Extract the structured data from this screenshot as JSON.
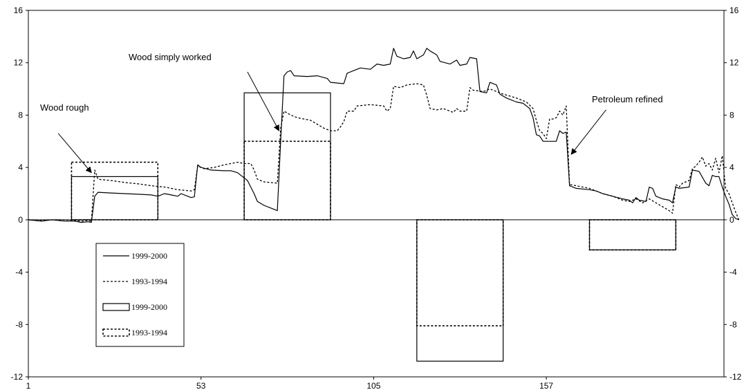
{
  "chart_data": {
    "type": "line",
    "title": "",
    "xlabel": "",
    "ylabel": "",
    "xlim": [
      1,
      209
    ],
    "ylim": [
      -12,
      16
    ],
    "y_ticks": [
      16,
      12,
      8,
      4,
      0,
      -4,
      -8,
      -12
    ],
    "x_ticks": [
      1,
      53,
      105,
      157
    ],
    "grid": false,
    "series": [
      {
        "name": "1999-2000",
        "style": "solid",
        "color": "#000000",
        "points": [
          [
            1,
            0
          ],
          [
            5,
            -0.1
          ],
          [
            8,
            0
          ],
          [
            10,
            -0.05
          ],
          [
            12,
            -0.1
          ],
          [
            15,
            -0.1
          ],
          [
            17,
            -0.2
          ],
          [
            19,
            -0.15
          ],
          [
            20,
            -0.2
          ],
          [
            21,
            1.8
          ],
          [
            22,
            2.1
          ],
          [
            26,
            2.05
          ],
          [
            30,
            2.0
          ],
          [
            34,
            1.95
          ],
          [
            38,
            1.9
          ],
          [
            40,
            1.8
          ],
          [
            42,
            2.0
          ],
          [
            44,
            1.9
          ],
          [
            46,
            1.8
          ],
          [
            47,
            2.0
          ],
          [
            49,
            1.8
          ],
          [
            50,
            1.7
          ],
          [
            51,
            1.75
          ],
          [
            52,
            4.2
          ],
          [
            53,
            4.0
          ],
          [
            56,
            3.8
          ],
          [
            60,
            3.75
          ],
          [
            62,
            3.75
          ],
          [
            64,
            3.6
          ],
          [
            66,
            3.2
          ],
          [
            67,
            3.0
          ],
          [
            69,
            2.0
          ],
          [
            70,
            1.4
          ],
          [
            72,
            1.1
          ],
          [
            74,
            0.9
          ],
          [
            76,
            0.7
          ],
          [
            77,
            6.0
          ],
          [
            78,
            11.0
          ],
          [
            79,
            11.3
          ],
          [
            80,
            11.4
          ],
          [
            81,
            11.0
          ],
          [
            85,
            10.95
          ],
          [
            88,
            11.0
          ],
          [
            91,
            10.8
          ],
          [
            92,
            10.5
          ],
          [
            96,
            10.4
          ],
          [
            97,
            11.2
          ],
          [
            99,
            11.4
          ],
          [
            101,
            11.6
          ],
          [
            104,
            11.5
          ],
          [
            106,
            11.9
          ],
          [
            108,
            11.8
          ],
          [
            110,
            11.9
          ],
          [
            111,
            13.1
          ],
          [
            112,
            12.5
          ],
          [
            114,
            12.3
          ],
          [
            116,
            12.4
          ],
          [
            117,
            12.9
          ],
          [
            118,
            12.3
          ],
          [
            120,
            12.6
          ],
          [
            121,
            13.1
          ],
          [
            122,
            12.9
          ],
          [
            124,
            12.6
          ],
          [
            125,
            12.1
          ],
          [
            128,
            11.9
          ],
          [
            130,
            12.2
          ],
          [
            131,
            11.8
          ],
          [
            133,
            11.9
          ],
          [
            134,
            12.4
          ],
          [
            136,
            12.3
          ],
          [
            137,
            9.8
          ],
          [
            139,
            9.7
          ],
          [
            140,
            10.5
          ],
          [
            142,
            10.3
          ],
          [
            143,
            9.6
          ],
          [
            145,
            9.3
          ],
          [
            148,
            9.0
          ],
          [
            150,
            8.9
          ],
          [
            152,
            8.5
          ],
          [
            153,
            7.8
          ],
          [
            154,
            6.5
          ],
          [
            155,
            6.4
          ],
          [
            156,
            6.0
          ],
          [
            157,
            6.0
          ],
          [
            160,
            6.0
          ],
          [
            161,
            6.8
          ],
          [
            162,
            6.6
          ],
          [
            163,
            6.7
          ],
          [
            164,
            2.6
          ],
          [
            166,
            2.4
          ],
          [
            170,
            2.3
          ],
          [
            172,
            2.2
          ],
          [
            174,
            2.0
          ],
          [
            177,
            1.8
          ],
          [
            180,
            1.6
          ],
          [
            182,
            1.5
          ],
          [
            183,
            1.3
          ],
          [
            184,
            1.7
          ],
          [
            185,
            1.5
          ],
          [
            187,
            1.4
          ],
          [
            188,
            2.5
          ],
          [
            189,
            2.4
          ],
          [
            190,
            1.8
          ],
          [
            192,
            1.6
          ],
          [
            194,
            1.5
          ],
          [
            195,
            1.3
          ],
          [
            196,
            2.5
          ],
          [
            197,
            2.4
          ],
          [
            200,
            2.5
          ],
          [
            201,
            3.8
          ],
          [
            203,
            3.7
          ],
          [
            205,
            2.8
          ],
          [
            206,
            2.6
          ],
          [
            207,
            3.4
          ],
          [
            208,
            3.3
          ],
          [
            209,
            3.3
          ],
          [
            210,
            2.5
          ],
          [
            211,
            1.8
          ],
          [
            212,
            1.2
          ],
          [
            213,
            0.4
          ],
          [
            214,
            0.1
          ],
          [
            215,
            0
          ]
        ]
      },
      {
        "name": "1993-1994",
        "style": "dotted",
        "color": "#000000",
        "points": [
          [
            1,
            0
          ],
          [
            5,
            -0.05
          ],
          [
            8,
            0
          ],
          [
            12,
            0
          ],
          [
            15,
            -0.05
          ],
          [
            17,
            -0.1
          ],
          [
            19,
            -0.05
          ],
          [
            20,
            -0.1
          ],
          [
            21,
            3.8
          ],
          [
            22,
            3.1
          ],
          [
            26,
            3.0
          ],
          [
            30,
            2.85
          ],
          [
            34,
            2.75
          ],
          [
            38,
            2.6
          ],
          [
            42,
            2.5
          ],
          [
            46,
            2.3
          ],
          [
            50,
            2.2
          ],
          [
            51,
            2.3
          ],
          [
            52,
            4.1
          ],
          [
            54,
            3.9
          ],
          [
            57,
            4.0
          ],
          [
            60,
            4.2
          ],
          [
            62,
            4.3
          ],
          [
            64,
            4.4
          ],
          [
            66,
            4.3
          ],
          [
            68,
            4.3
          ],
          [
            69,
            3.8
          ],
          [
            70,
            3.1
          ],
          [
            72,
            2.9
          ],
          [
            76,
            2.8
          ],
          [
            77,
            7.0
          ],
          [
            78,
            8.3
          ],
          [
            80,
            8.0
          ],
          [
            82,
            7.8
          ],
          [
            86,
            7.6
          ],
          [
            88,
            7.3
          ],
          [
            90,
            7.0
          ],
          [
            92,
            6.8
          ],
          [
            94,
            6.8
          ],
          [
            95,
            7.1
          ],
          [
            96,
            7.5
          ],
          [
            97,
            8.3
          ],
          [
            99,
            8.3
          ],
          [
            100,
            8.7
          ],
          [
            104,
            8.8
          ],
          [
            108,
            8.7
          ],
          [
            109,
            8.3
          ],
          [
            110,
            8.5
          ],
          [
            111,
            10.2
          ],
          [
            113,
            10.1
          ],
          [
            115,
            10.3
          ],
          [
            118,
            10.4
          ],
          [
            120,
            10.3
          ],
          [
            121,
            9.5
          ],
          [
            122,
            8.5
          ],
          [
            124,
            8.4
          ],
          [
            126,
            8.5
          ],
          [
            128,
            8.3
          ],
          [
            129,
            8.2
          ],
          [
            130,
            8.5
          ],
          [
            131,
            8.3
          ],
          [
            133,
            8.3
          ],
          [
            134,
            10.1
          ],
          [
            135,
            9.9
          ],
          [
            138,
            9.8
          ],
          [
            140,
            10.0
          ],
          [
            142,
            9.8
          ],
          [
            144,
            9.6
          ],
          [
            148,
            9.3
          ],
          [
            151,
            9.0
          ],
          [
            153,
            8.5
          ],
          [
            154,
            7.6
          ],
          [
            155,
            6.8
          ],
          [
            156,
            6.6
          ],
          [
            157,
            6.2
          ],
          [
            158,
            7.7
          ],
          [
            159,
            7.7
          ],
          [
            160,
            7.8
          ],
          [
            161,
            8.3
          ],
          [
            162,
            8.0
          ],
          [
            163,
            8.7
          ],
          [
            164,
            2.7
          ],
          [
            166,
            2.6
          ],
          [
            170,
            2.4
          ],
          [
            172,
            2.2
          ],
          [
            174,
            2.0
          ],
          [
            177,
            1.8
          ],
          [
            180,
            1.5
          ],
          [
            182,
            1.4
          ],
          [
            184,
            1.6
          ],
          [
            186,
            1.3
          ],
          [
            188,
            1.6
          ],
          [
            190,
            1.3
          ],
          [
            192,
            1.0
          ],
          [
            194,
            0.7
          ],
          [
            195,
            0.5
          ],
          [
            196,
            2.7
          ],
          [
            197,
            2.5
          ],
          [
            198,
            2.8
          ],
          [
            200,
            3.0
          ],
          [
            201,
            3.9
          ],
          [
            202,
            4.1
          ],
          [
            203,
            4.4
          ],
          [
            204,
            4.8
          ],
          [
            205,
            4.1
          ],
          [
            206,
            4.3
          ],
          [
            207,
            3.8
          ],
          [
            208,
            4.7
          ],
          [
            209,
            3.6
          ],
          [
            210,
            4.9
          ],
          [
            211,
            2.4
          ],
          [
            212,
            2.0
          ],
          [
            213,
            1.3
          ],
          [
            214,
            0.6
          ],
          [
            215,
            0
          ]
        ]
      }
    ],
    "bars": [
      {
        "series": "1999-2000",
        "style": "solid",
        "x_start": 14,
        "x_end": 40,
        "value": 3.3
      },
      {
        "series": "1993-1994",
        "style": "dotted",
        "x_start": 14,
        "x_end": 40,
        "value": 4.4
      },
      {
        "series": "1999-2000",
        "style": "solid",
        "x_start": 66,
        "x_end": 92,
        "value": 9.7
      },
      {
        "series": "1993-1994",
        "style": "dotted",
        "x_start": 66,
        "x_end": 92,
        "value": 6.0
      },
      {
        "series": "1999-2000",
        "style": "solid",
        "x_start": 118,
        "x_end": 144,
        "value": -10.8
      },
      {
        "series": "1993-1994",
        "style": "dotted",
        "x_start": 118,
        "x_end": 144,
        "value": -8.1
      },
      {
        "series": "1999-2000",
        "style": "solid",
        "x_start": 170,
        "x_end": 196,
        "value": -2.3
      },
      {
        "series": "1993-1994",
        "style": "dotted",
        "x_start": 170,
        "x_end": 196,
        "value": -2.3
      }
    ],
    "annotations": [
      {
        "text": "Wood rough",
        "from": [
          10,
          6.6
        ],
        "to": [
          20,
          3.6
        ]
      },
      {
        "text": "Wood simply worked",
        "from": [
          67,
          11.3
        ],
        "to": [
          76.5,
          6.8
        ]
      },
      {
        "text": "Petroleum refined",
        "from": [
          175,
          8.4
        ],
        "to": [
          164.5,
          5.0
        ]
      }
    ],
    "legend": {
      "position": "left",
      "entries": [
        {
          "label": "1999-2000",
          "kind": "line",
          "style": "solid"
        },
        {
          "label": "1993-1994",
          "kind": "line",
          "style": "dotted"
        },
        {
          "label": "1999-2000",
          "kind": "box",
          "style": "solid"
        },
        {
          "label": "1993-1994",
          "kind": "box",
          "style": "dotted"
        }
      ]
    }
  }
}
